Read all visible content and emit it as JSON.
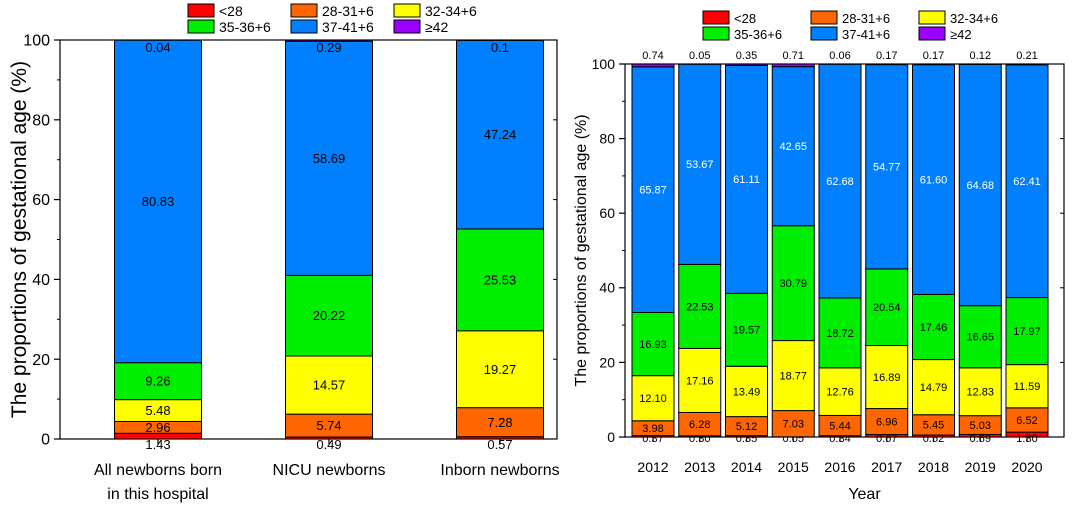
{
  "colors": {
    "lt28": "#ff0000",
    "w28_31": "#ff6600",
    "w32_34": "#ffff00",
    "w35_36": "#00ee00",
    "w37_41": "#0080ff",
    "ge42": "#9900ff"
  },
  "chart_data": [
    {
      "type": "bar",
      "stacked": true,
      "title": "",
      "xlabel": "",
      "ylabel": "The proportions of gestational age (%)",
      "ylim": [
        0,
        100
      ],
      "yticks": [
        "0",
        "20",
        "40",
        "60",
        "80",
        "100"
      ],
      "legend_position": "top",
      "legend": [
        "<28",
        "28-31+6",
        "32-34+6",
        "35-36+6",
        "37-41+6",
        "≥42"
      ],
      "categories": [
        "All newborns born\nin this hospital",
        "NICU newborns",
        "Inborn newborns"
      ],
      "series": [
        {
          "name": "<28",
          "color_key": "lt28",
          "values": [
            1.43,
            0.49,
            0.57
          ],
          "labels": [
            "1.43",
            "0.49",
            "0.57"
          ]
        },
        {
          "name": "28-31+6",
          "color_key": "w28_31",
          "values": [
            2.96,
            5.74,
            7.28
          ],
          "labels": [
            "2.96",
            "5.74",
            "7.28"
          ]
        },
        {
          "name": "32-34+6",
          "color_key": "w32_34",
          "values": [
            5.48,
            14.57,
            19.27
          ],
          "labels": [
            "5.48",
            "14.57",
            "19.27"
          ]
        },
        {
          "name": "35-36+6",
          "color_key": "w35_36",
          "values": [
            9.26,
            20.22,
            25.53
          ],
          "labels": [
            "9.26",
            "20.22",
            "25.53"
          ]
        },
        {
          "name": "37-41+6",
          "color_key": "w37_41",
          "values": [
            80.83,
            58.69,
            47.24
          ],
          "labels": [
            "80.83",
            "58.69",
            "47.24"
          ]
        },
        {
          "name": "≥42",
          "color_key": "ge42",
          "values": [
            0.04,
            0.29,
            0.1
          ],
          "labels": [
            "0.04",
            "0.29",
            "0.1"
          ]
        }
      ]
    },
    {
      "type": "bar",
      "stacked": true,
      "title": "",
      "xlabel": "Year",
      "ylabel": "The proportions of gestational age (%)",
      "ylim": [
        0,
        100
      ],
      "yticks": [
        "0",
        "20",
        "40",
        "60",
        "80",
        "100"
      ],
      "legend_position": "top",
      "legend": [
        "<28",
        "28-31+6",
        "32-34+6",
        "35-36+6",
        "37-41+6",
        "≥42"
      ],
      "categories": [
        "2012",
        "2013",
        "2014",
        "2015",
        "2016",
        "2017",
        "2018",
        "2019",
        "2020"
      ],
      "series": [
        {
          "name": "<28",
          "color_key": "lt28",
          "values": [
            0.37,
            0.3,
            0.35,
            0.05,
            0.34,
            0.67,
            0.52,
            0.69,
            1.3
          ],
          "labels": [
            "0.37",
            "0.30",
            "0.35",
            "0.05",
            "0.34",
            "0.67",
            "0.52",
            "0.69",
            "1.30"
          ]
        },
        {
          "name": "28-31+6",
          "color_key": "w28_31",
          "values": [
            3.98,
            6.28,
            5.12,
            7.03,
            5.44,
            6.96,
            5.45,
            5.03,
            6.52
          ],
          "labels": [
            "3.98",
            "6.28",
            "5.12",
            "7.03",
            "5.44",
            "6.96",
            "5.45",
            "5.03",
            "6.52"
          ]
        },
        {
          "name": "32-34+6",
          "color_key": "w32_34",
          "values": [
            12.1,
            17.16,
            13.49,
            18.77,
            12.76,
            16.89,
            14.79,
            12.83,
            11.59
          ],
          "labels": [
            "12.10",
            "17.16",
            "13.49",
            "18.77",
            "12.76",
            "16.89",
            "14.79",
            "12.83",
            "11.59"
          ]
        },
        {
          "name": "35-36+6",
          "color_key": "w35_36",
          "values": [
            16.93,
            22.53,
            19.57,
            30.79,
            18.72,
            20.54,
            17.46,
            16.65,
            17.97
          ],
          "labels": [
            "16.93",
            "22.53",
            "19.57",
            "30.79",
            "18.72",
            "20.54",
            "17.46",
            "16.65",
            "17.97"
          ]
        },
        {
          "name": "37-41+6",
          "color_key": "w37_41",
          "values": [
            65.87,
            53.67,
            61.11,
            42.65,
            62.68,
            54.77,
            61.6,
            64.68,
            62.41
          ],
          "labels": [
            "65.87",
            "53.67",
            "61.11",
            "42.65",
            "62.68",
            "54.77",
            "61.60",
            "64.68",
            "62.41"
          ]
        },
        {
          "name": "≥42",
          "color_key": "ge42",
          "values": [
            0.74,
            0.05,
            0.35,
            0.71,
            0.06,
            0.17,
            0.17,
            0.12,
            0.21
          ],
          "labels": [
            "0.74",
            "0.05",
            "0.35",
            "0.71",
            "0.06",
            "0.17",
            "0.17",
            "0.12",
            "0.21"
          ]
        }
      ]
    }
  ]
}
